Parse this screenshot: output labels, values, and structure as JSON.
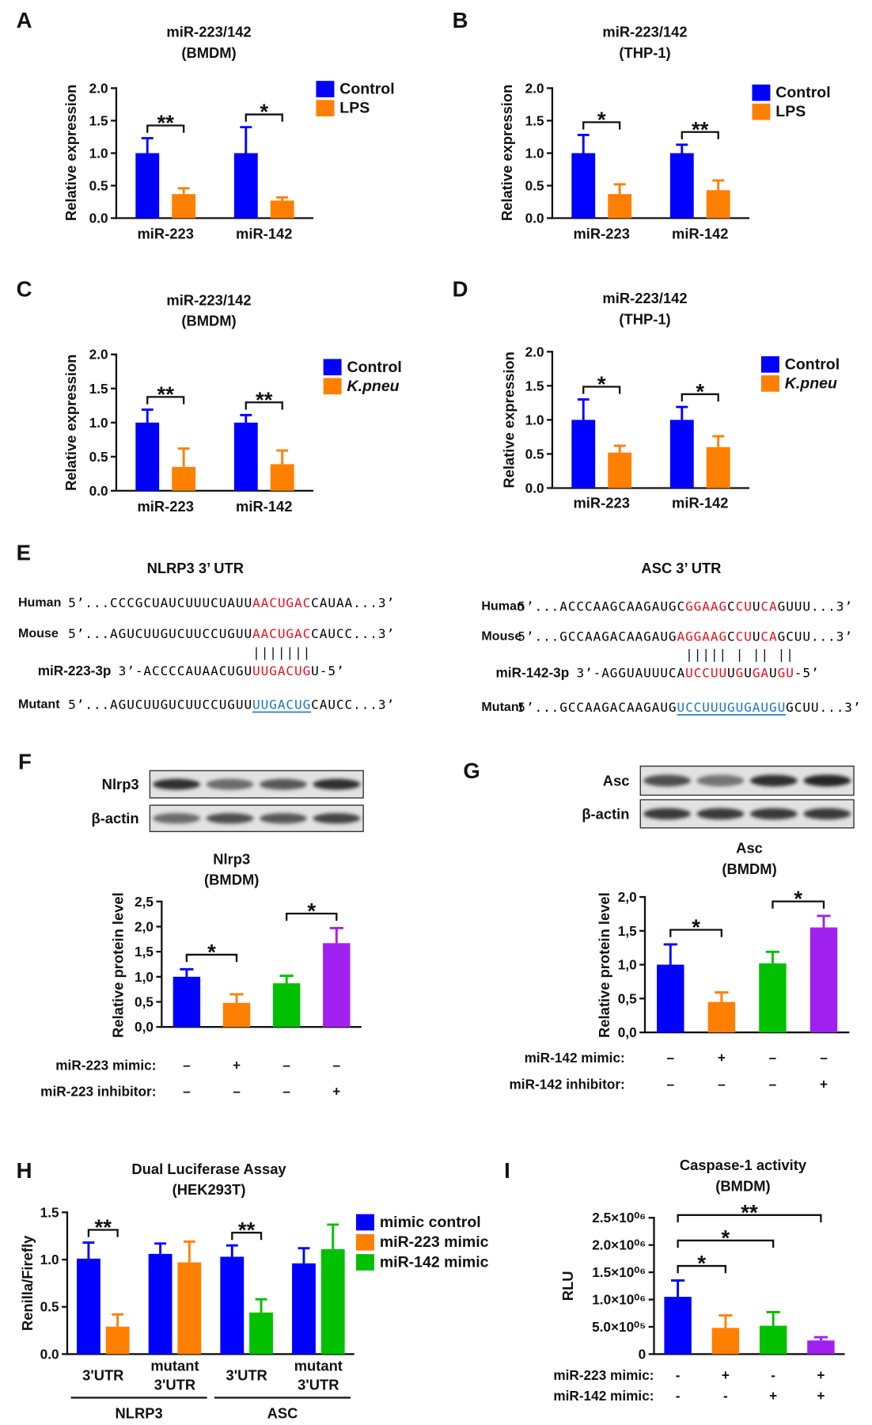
{
  "chart_data": [
    {
      "type": "bar",
      "panel_label": "A",
      "title": [
        "miR-223/142",
        "(BMDM)"
      ],
      "y_label": "Relative expression",
      "categories": [
        "miR-223",
        "miR-142"
      ],
      "series": [
        {
          "name": "Control",
          "color": "#0000ff",
          "values": [
            1.0,
            1.0
          ],
          "errors": [
            0.23,
            0.4
          ]
        },
        {
          "name": "LPS",
          "color": "#ff7f00",
          "values": [
            0.37,
            0.27
          ],
          "errors": [
            0.09,
            0.05
          ]
        }
      ],
      "ylim": [
        0,
        2
      ],
      "yticks": [
        {
          "value": 0,
          "label": "0.0"
        },
        0.5,
        {
          "value": 1,
          "label": "1.0"
        },
        1.5,
        {
          "value": 2,
          "label": "2.0"
        }
      ],
      "significance": [
        "**",
        "*"
      ]
    },
    {
      "type": "bar",
      "panel_label": "B",
      "title": [
        "miR-223/142",
        "(THP-1)"
      ],
      "y_label": "Relative expression",
      "categories": [
        "miR-223",
        "miR-142"
      ],
      "series": [
        {
          "name": "Control",
          "color": "#0000ff",
          "values": [
            1.0,
            1.0
          ],
          "errors": [
            0.28,
            0.13
          ]
        },
        {
          "name": "LPS",
          "color": "#ff7f00",
          "values": [
            0.37,
            0.43
          ],
          "errors": [
            0.15,
            0.15
          ]
        }
      ],
      "ylim": [
        0,
        2
      ],
      "yticks": [
        {
          "value": 0,
          "label": "0.0"
        },
        0.5,
        {
          "value": 1,
          "label": "1.0"
        },
        1.5,
        {
          "value": 2,
          "label": "2.0"
        }
      ],
      "significance": [
        "*",
        "**"
      ]
    },
    {
      "type": "bar",
      "panel_label": "C",
      "title": [
        "miR-223/142",
        "(BMDM)"
      ],
      "y_label": "Relative expression",
      "categories": [
        "miR-223",
        "miR-142"
      ],
      "series": [
        {
          "name": "Control",
          "color": "#0000ff",
          "values": [
            1.0,
            1.0
          ],
          "errors": [
            0.19,
            0.11
          ]
        },
        {
          "name": "K.pneu",
          "italic": true,
          "color": "#ff7f00",
          "values": [
            0.35,
            0.39
          ],
          "errors": [
            0.27,
            0.2
          ]
        }
      ],
      "ylim": [
        0,
        2
      ],
      "yticks": [
        {
          "value": 0,
          "label": "0.0"
        },
        0.5,
        {
          "value": 1,
          "label": "1.0"
        },
        1.5,
        {
          "value": 2,
          "label": "2.0"
        }
      ],
      "significance": [
        "**",
        "**"
      ]
    },
    {
      "type": "bar",
      "panel_label": "D",
      "title": [
        "miR-223/142",
        "(THP-1)"
      ],
      "y_label": "Relative expression",
      "categories": [
        "miR-223",
        "miR-142"
      ],
      "series": [
        {
          "name": "Control",
          "color": "#0000ff",
          "values": [
            1.0,
            1.0
          ],
          "errors": [
            0.3,
            0.19
          ]
        },
        {
          "name": "K.pneu",
          "italic": true,
          "color": "#ff7f00",
          "values": [
            0.52,
            0.6
          ],
          "errors": [
            0.1,
            0.16
          ]
        }
      ],
      "ylim": [
        0,
        2
      ],
      "yticks": [
        {
          "value": 0,
          "label": "0.0"
        },
        0.5,
        {
          "value": 1,
          "label": "1.0"
        },
        1.5,
        {
          "value": 2,
          "label": "2.0"
        }
      ],
      "significance": [
        "*",
        "*"
      ]
    },
    {
      "type": "bar",
      "panel_label": "F",
      "blot_labels": [
        "Nlrp3",
        "β-actin"
      ],
      "title": [
        "Nlrp3",
        "(BMDM)"
      ],
      "y_label": "Relative protein level",
      "categories": [
        null,
        null,
        null,
        null
      ],
      "series": [
        {
          "colors": [
            "#0000ff",
            "#ff7f00",
            "#00c000",
            "#a020f0"
          ],
          "values": [
            1.0,
            0.48,
            0.87,
            1.67
          ],
          "errors": [
            0.15,
            0.17,
            0.15,
            0.3
          ]
        }
      ],
      "ylim": [
        0,
        2.5
      ],
      "yticks": [
        {
          "value": 0,
          "label": "0,0"
        },
        {
          "value": 0.5,
          "label": "0,5"
        },
        {
          "value": 1,
          "label": "1,0"
        },
        {
          "value": 1.5,
          "label": "1,5"
        },
        {
          "value": 2,
          "label": "2,0"
        },
        {
          "value": 2.5,
          "label": "2,5"
        }
      ],
      "comparisons": [
        {
          "label": "*",
          "from": 0,
          "to": 1
        },
        {
          "label": "*",
          "from": 2,
          "to": 3
        }
      ],
      "treatments": [
        {
          "label": "miR-223 mimic:",
          "values": [
            "–",
            "+",
            "–",
            "–"
          ]
        },
        {
          "label": "miR-223 inhibitor:",
          "values": [
            "–",
            "–",
            "–",
            "+"
          ]
        }
      ]
    },
    {
      "type": "bar",
      "panel_label": "G",
      "blot_labels": [
        "Asc",
        "β-actin"
      ],
      "title": [
        "Asc",
        "(BMDM)"
      ],
      "y_label": "Relative protein level",
      "categories": [
        null,
        null,
        null,
        null
      ],
      "series": [
        {
          "colors": [
            "#0000ff",
            "#ff7f00",
            "#00c000",
            "#a020f0"
          ],
          "values": [
            1.0,
            0.45,
            1.02,
            1.55
          ],
          "errors": [
            0.3,
            0.14,
            0.17,
            0.17
          ]
        }
      ],
      "ylim": [
        0,
        2
      ],
      "yticks": [
        {
          "value": 0,
          "label": "0,0"
        },
        {
          "value": 0.5,
          "label": "0,5"
        },
        {
          "value": 1,
          "label": "1,0"
        },
        {
          "value": 1.5,
          "label": "1,5"
        },
        {
          "value": 2,
          "label": "2,0"
        }
      ],
      "comparisons": [
        {
          "label": "*",
          "from": 0,
          "to": 1
        },
        {
          "label": "*",
          "from": 2,
          "to": 3
        }
      ],
      "treatments": [
        {
          "label": "miR-142 mimic:",
          "values": [
            "–",
            "+",
            "–",
            "–"
          ]
        },
        {
          "label": "miR-142 inhibitor:",
          "values": [
            "–",
            "–",
            "–",
            "+"
          ]
        }
      ]
    },
    {
      "type": "bar",
      "panel_label": "H",
      "title": [
        "Dual Luciferase Assay",
        "(HEK293T)"
      ],
      "y_label": "Renilla/Firefly",
      "categories": [
        [
          "3'UTR"
        ],
        [
          "mutant",
          "3'UTR"
        ],
        [
          "3'UTR"
        ],
        [
          "mutant",
          "3'UTR"
        ]
      ],
      "groups": [
        {
          "label": "NLRP3",
          "from": 0,
          "to": 1
        },
        {
          "label": "ASC",
          "from": 2,
          "to": 3
        }
      ],
      "series": [
        {
          "name": "mimic control",
          "color": "#0000ff",
          "values": [
            1.01,
            1.06,
            1.03,
            0.96
          ],
          "errors": [
            0.17,
            0.11,
            0.12,
            0.16
          ]
        },
        {
          "name": "miR-223 mimic",
          "color": "#ff7f00",
          "values": [
            0.29,
            0.97,
            null,
            null
          ],
          "errors": [
            0.13,
            0.22,
            null,
            null
          ]
        },
        {
          "name": "miR-142 mimic",
          "color": "#00c000",
          "values": [
            null,
            null,
            0.44,
            1.11
          ],
          "errors": [
            null,
            null,
            0.14,
            0.26
          ]
        }
      ],
      "ylim": [
        0,
        1.5
      ],
      "yticks": [
        {
          "value": 0,
          "label": "0.0"
        },
        0.5,
        {
          "value": 1,
          "label": "1.0"
        },
        1.5
      ],
      "significance": [
        "**",
        null,
        "**",
        null
      ]
    },
    {
      "type": "bar",
      "panel_label": "I",
      "title": [
        "Caspase-1 activity",
        "(BMDM)"
      ],
      "y_label": "RLU",
      "categories": [
        null,
        null,
        null,
        null
      ],
      "series": [
        {
          "colors": [
            "#0000ff",
            "#ff7f00",
            "#00c000",
            "#a020f0"
          ],
          "values": [
            1050000,
            480000,
            520000,
            250000
          ],
          "errors": [
            300000,
            230000,
            250000,
            60000
          ]
        }
      ],
      "ylim": [
        0,
        2500000
      ],
      "yticks": [
        0,
        {
          "value": 500000,
          "label": "5.0×10⁰⁵"
        },
        {
          "value": 1000000,
          "label": "1.0×10⁰⁶"
        },
        {
          "value": 1500000,
          "label": "1.5×10⁰⁶"
        },
        {
          "value": 2000000,
          "label": "2.0×10⁰⁶"
        },
        {
          "value": 2500000,
          "label": "2.5×10⁰⁶"
        }
      ],
      "comparisons": [
        {
          "label": "*",
          "from": 0,
          "to": 1
        },
        {
          "label": "*",
          "from": 0,
          "to": 2
        },
        {
          "label": "**",
          "from": 0,
          "to": 3
        }
      ],
      "treatments": [
        {
          "label": "miR-223 mimic:",
          "values": [
            "-",
            "+",
            "-",
            "+"
          ]
        },
        {
          "label": "miR-142 mimic:",
          "values": [
            "-",
            "-",
            "+",
            "+"
          ]
        }
      ]
    }
  ],
  "sequence_panel": {
    "panel_label": "E",
    "alignments": [
      {
        "title": "NLRP3 3’ UTR",
        "human": {
          "label": "Human",
          "segments": [
            {
              "text": "5’...CCCGCUAUCUUUCUAUU",
              "color": "#000000"
            },
            {
              "text": "AACUGAC",
              "color": "#e8101a"
            },
            {
              "text": "CAUAA...3’",
              "color": "#000000"
            }
          ]
        },
        "mouse": {
          "label": "Mouse",
          "segments": [
            {
              "text": "5’...AGUCUUGUCUUCCUGUU",
              "color": "#000000"
            },
            {
              "text": "AACUGAC",
              "color": "#e8101a"
            },
            {
              "text": "CAUCC...3’",
              "color": "#000000"
            }
          ]
        },
        "pairing": "|||||||",
        "mirna": {
          "label": "miR-223-3p",
          "segments": [
            {
              "text": "3’-ACCCCAUAACUGU",
              "color": "#000000"
            },
            {
              "text": "UUGACUG",
              "color": "#e8101a"
            },
            {
              "text": "U-5’",
              "color": "#000000"
            }
          ]
        },
        "mutant": {
          "label": "Mutant",
          "label_color": "#1a75c8",
          "segments": [
            {
              "text": "5’...AGUCUUGUCUUCCUGUU",
              "color": "#000000"
            },
            {
              "text": "UUGACUG",
              "color": "#1a75c8",
              "underline": true
            },
            {
              "text": "CAUCC...3’",
              "color": "#000000"
            }
          ]
        }
      },
      {
        "title": "ASC 3’ UTR",
        "human": {
          "label": "Human",
          "segments": [
            {
              "text": "5’...ACCCAAGCAAGAUGC",
              "color": "#000000"
            },
            {
              "text": "GGAAG",
              "color": "#e8101a"
            },
            {
              "text": "C",
              "color": "#000000"
            },
            {
              "text": "CU",
              "color": "#e8101a"
            },
            {
              "text": "U",
              "color": "#000000"
            },
            {
              "text": "CA",
              "color": "#e8101a"
            },
            {
              "text": "GUUU...3’",
              "color": "#000000"
            }
          ]
        },
        "mouse": {
          "label": "Mouse",
          "segments": [
            {
              "text": "5’...GCCAAGACAAGAUG",
              "color": "#000000"
            },
            {
              "text": "AGGAAG",
              "color": "#e8101a"
            },
            {
              "text": "C",
              "color": "#000000"
            },
            {
              "text": "CU",
              "color": "#e8101a"
            },
            {
              "text": "U",
              "color": "#000000"
            },
            {
              "text": "CA",
              "color": "#e8101a"
            },
            {
              "text": "GCUU...3’",
              "color": "#000000"
            }
          ]
        },
        "pairing": " ||||| | || ||",
        "mirna": {
          "label": "miR-142-3p",
          "segments": [
            {
              "text": "3’-AGGUAUUUCA",
              "color": "#000000"
            },
            {
              "text": "UCCUU",
              "color": "#e8101a"
            },
            {
              "text": "U",
              "color": "#000000"
            },
            {
              "text": "G",
              "color": "#e8101a"
            },
            {
              "text": "U",
              "color": "#000000"
            },
            {
              "text": "GA",
              "color": "#e8101a"
            },
            {
              "text": "U",
              "color": "#000000"
            },
            {
              "text": "GU",
              "color": "#e8101a"
            },
            {
              "text": "-5’",
              "color": "#000000"
            }
          ]
        },
        "mutant": {
          "label": "Mutant",
          "label_color": "#1a75c8",
          "segments": [
            {
              "text": "5’...GCCAAGACAAGAUG",
              "color": "#000000"
            },
            {
              "text": "UCCUUUGUGAUGU",
              "color": "#1a75c8",
              "underline": true
            },
            {
              "text": "GCUU...3’",
              "color": "#000000"
            }
          ]
        }
      }
    ]
  }
}
